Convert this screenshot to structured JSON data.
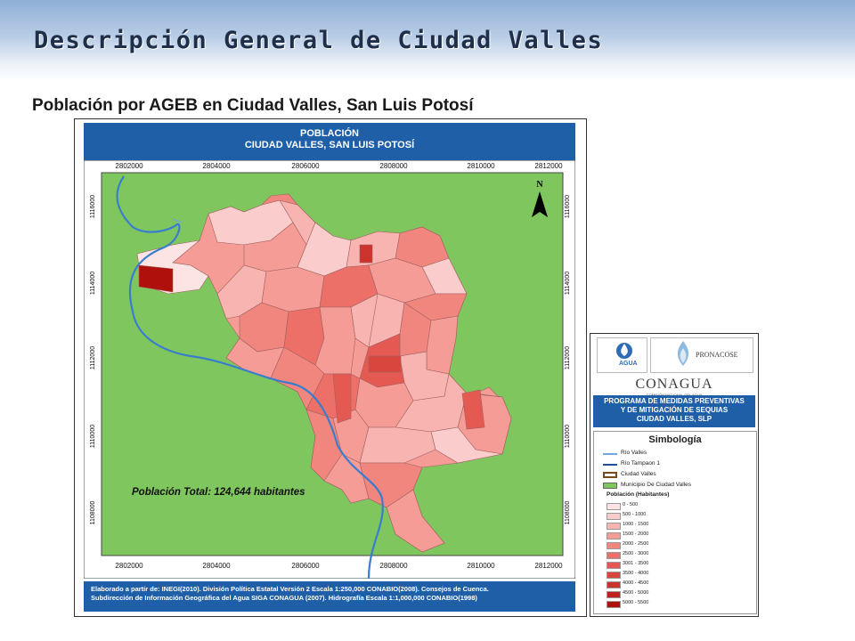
{
  "slide": {
    "title": "Descripción General de Ciudad Valles",
    "subtitle": "Población por AGEB en Ciudad Valles, San Luis Potosí"
  },
  "map": {
    "header_line1": "POBLACIÓN",
    "header_line2": "CIUDAD VALLES, SAN LUIS POTOSÍ",
    "x_ticks": [
      "2802000",
      "2804000",
      "2806000",
      "2808000",
      "2810000",
      "2812000"
    ],
    "y_ticks": [
      "1116000",
      "1114000",
      "1112000",
      "1110000",
      "1108000"
    ],
    "north_label": "N",
    "total_label": "Población Total: 124,644 habitantes",
    "footer_line1": "Elaborado a partir de: INEGI(2010). División Política Estatal Versión 2 Escala 1:250,000 CONABIO(2008). Consejos de Cuenca.",
    "footer_line2": "Subdirección de Información Geográfica del Agua SIGA CONAGUA (2007). Hidrografía Escala 1:1,000,000 CONABIO(1998)",
    "colors": {
      "header_blue": "#1f5fa8",
      "municipio_green": "#7fc65e",
      "river_blue": "#3a7dcf"
    }
  },
  "legend": {
    "conagua_logo": "CONAGUA",
    "conagua_sub": "COMISIÓN NACIONAL DEL AGUA",
    "pronacose": "PRONACOSE",
    "program_line1": "PROGRAMA DE MEDIDAS PREVENTIVAS",
    "program_line2": "Y DE MITIGACIÓN DE SEQUIAS",
    "program_line3": "CIUDAD VALLES, SLP",
    "simbologia": "Simbología",
    "items": [
      {
        "label": "Río Valles",
        "type": "line",
        "color": "#6fa8dc"
      },
      {
        "label": "Río Tampaon 1",
        "type": "line",
        "color": "#1f4e9a"
      },
      {
        "label": "Ciudad Valles",
        "type": "outline",
        "color": "#7a4a1e"
      },
      {
        "label": "Municipio De Ciudad Valles",
        "type": "fill",
        "color": "#7fc65e"
      }
    ],
    "population_heading": "Población (Habitantes)",
    "population_classes": [
      {
        "label": "0 - 500",
        "color": "#fde4e4"
      },
      {
        "label": "500 - 1000",
        "color": "#fbcccc"
      },
      {
        "label": "1000 - 1500",
        "color": "#f8b4b0"
      },
      {
        "label": "1500 - 2000",
        "color": "#f59c96"
      },
      {
        "label": "2000 - 2500",
        "color": "#f1867e"
      },
      {
        "label": "2500 - 3000",
        "color": "#ec7068"
      },
      {
        "label": "3001 - 3500",
        "color": "#e45a52"
      },
      {
        "label": "3500 - 4000",
        "color": "#d9463e"
      },
      {
        "label": "4000 - 4500",
        "color": "#cc332c"
      },
      {
        "label": "4500 - 5000",
        "color": "#bf221c"
      },
      {
        "label": "5000 - 5500",
        "color": "#b0100c"
      }
    ]
  }
}
